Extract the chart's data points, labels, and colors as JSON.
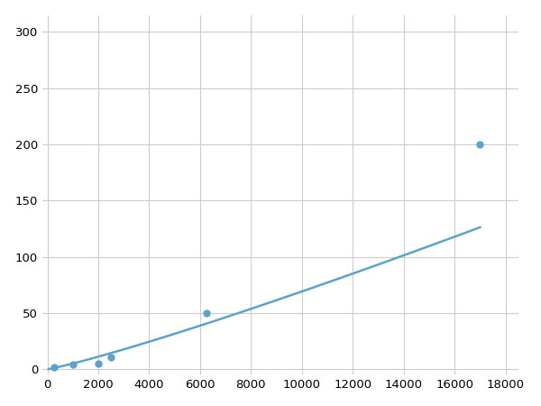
{
  "x_points": [
    250,
    1000,
    2000,
    2500,
    6250,
    17000
  ],
  "y_points": [
    2,
    4,
    5,
    11,
    50,
    200
  ],
  "line_color": "#5ba3c9",
  "marker_color": "#5ba3c9",
  "marker_size": 6,
  "linewidth": 1.8,
  "xlim": [
    -200,
    18500
  ],
  "ylim": [
    -5,
    315
  ],
  "xticks": [
    0,
    2000,
    4000,
    6000,
    8000,
    10000,
    12000,
    14000,
    16000,
    18000
  ],
  "yticks": [
    0,
    50,
    100,
    150,
    200,
    250,
    300
  ],
  "grid_color": "#cccccc",
  "grid_linewidth": 0.8,
  "background_color": "#ffffff",
  "tick_fontsize": 9.5,
  "fig_width": 6.0,
  "fig_height": 4.5,
  "dpi": 100
}
